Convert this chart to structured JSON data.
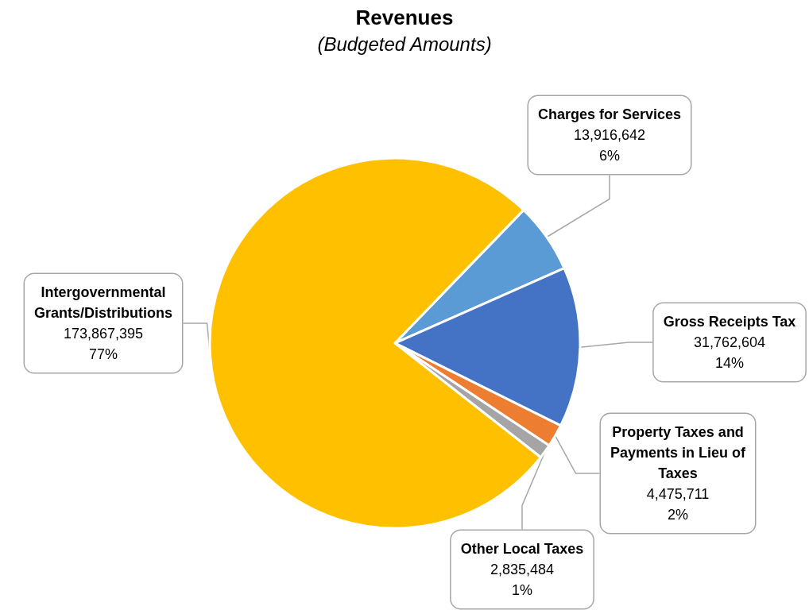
{
  "chart_data": {
    "type": "pie",
    "title": "Revenues",
    "subtitle": "(Budgeted Amounts)",
    "categories": [
      "Charges for Services",
      "Gross Receipts Tax",
      "Property Taxes and Payments in Lieu of Taxes",
      "Other Local Taxes",
      "Intergovernmental Grants/Distributions"
    ],
    "values": [
      13916642,
      31762604,
      4475711,
      2835484,
      173867395
    ],
    "colors": [
      "#5b9bd5",
      "#4472c4",
      "#ed7d31",
      "#a5a5a5",
      "#ffc000"
    ],
    "value_labels": [
      "13,916,642\n6%",
      "31,762,604\n14%",
      "4,475,711\n2%",
      "2,835,484\n1%",
      "173,867,395\n77%"
    ],
    "legend": false
  }
}
